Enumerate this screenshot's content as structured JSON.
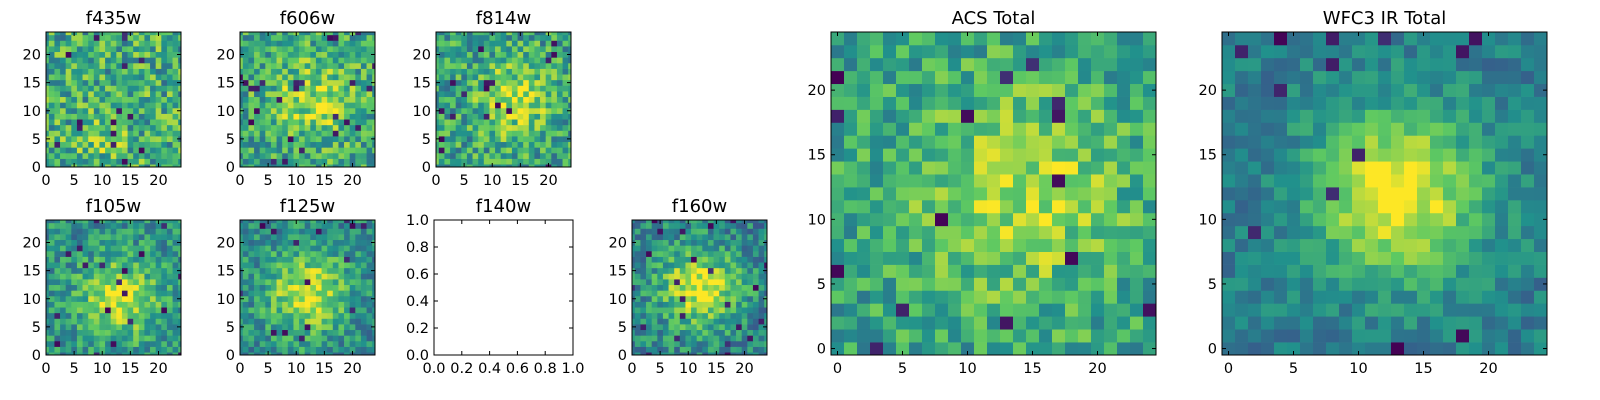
{
  "chart_data": [
    {
      "type": "heatmap",
      "title": "f435w",
      "xlim": [
        0,
        24
      ],
      "ylim": [
        0,
        24
      ],
      "xticks": [
        0,
        5,
        10,
        15,
        20
      ],
      "yticks": [
        0,
        5,
        10,
        15,
        20
      ],
      "xtick_labels": [
        "0",
        "5",
        "10",
        "15",
        "20"
      ],
      "ytick_labels": [
        "0",
        "5",
        "10",
        "15",
        "20"
      ],
      "grid_size": 25,
      "peak": [
        10,
        4
      ],
      "sigma": 4.0,
      "amplitude": 0.1,
      "noise": 0.55,
      "base": 0.62,
      "seed": 11,
      "empty": false
    },
    {
      "type": "heatmap",
      "title": "f606w",
      "xlim": [
        0,
        24
      ],
      "ylim": [
        0,
        24
      ],
      "xticks": [
        0,
        5,
        10,
        15,
        20
      ],
      "yticks": [
        0,
        5,
        10,
        15,
        20
      ],
      "xtick_labels": [
        "0",
        "5",
        "10",
        "15",
        "20"
      ],
      "ytick_labels": [
        "0",
        "5",
        "10",
        "15",
        "20"
      ],
      "grid_size": 25,
      "peak": [
        13,
        12
      ],
      "sigma": 5.0,
      "amplitude": 0.25,
      "noise": 0.5,
      "base": 0.6,
      "seed": 23,
      "empty": false
    },
    {
      "type": "heatmap",
      "title": "f814w",
      "xlim": [
        0,
        24
      ],
      "ylim": [
        0,
        24
      ],
      "xticks": [
        0,
        5,
        10,
        15,
        20
      ],
      "yticks": [
        0,
        5,
        10,
        15,
        20
      ],
      "xtick_labels": [
        "0",
        "5",
        "10",
        "15",
        "20"
      ],
      "ytick_labels": [
        "0",
        "5",
        "10",
        "15",
        "20"
      ],
      "grid_size": 25,
      "peak": [
        14,
        12
      ],
      "sigma": 4.5,
      "amplitude": 0.3,
      "noise": 0.5,
      "base": 0.58,
      "seed": 37,
      "empty": false
    },
    {
      "type": "heatmap",
      "title": "f105w",
      "xlim": [
        0,
        24
      ],
      "ylim": [
        0,
        24
      ],
      "xticks": [
        0,
        5,
        10,
        15,
        20
      ],
      "yticks": [
        0,
        5,
        10,
        15,
        20
      ],
      "xtick_labels": [
        "0",
        "5",
        "10",
        "15",
        "20"
      ],
      "ytick_labels": [
        "0",
        "5",
        "10",
        "15",
        "20"
      ],
      "grid_size": 25,
      "peak": [
        13,
        10
      ],
      "sigma": 5.0,
      "amplitude": 0.4,
      "noise": 0.4,
      "base": 0.5,
      "seed": 41,
      "empty": false
    },
    {
      "type": "heatmap",
      "title": "f125w",
      "xlim": [
        0,
        24
      ],
      "ylim": [
        0,
        24
      ],
      "xticks": [
        0,
        5,
        10,
        15,
        20
      ],
      "yticks": [
        0,
        5,
        10,
        15,
        20
      ],
      "xtick_labels": [
        "0",
        "5",
        "10",
        "15",
        "20"
      ],
      "ytick_labels": [
        "0",
        "5",
        "10",
        "15",
        "20"
      ],
      "grid_size": 25,
      "peak": [
        12,
        11
      ],
      "sigma": 5.0,
      "amplitude": 0.45,
      "noise": 0.4,
      "base": 0.48,
      "seed": 53,
      "empty": false
    },
    {
      "type": "heatmap",
      "title": "f140w",
      "xlim": [
        0,
        1
      ],
      "ylim": [
        0,
        1
      ],
      "xticks": [
        0,
        0.2,
        0.4,
        0.6,
        0.8,
        1.0
      ],
      "yticks": [
        0,
        0.2,
        0.4,
        0.6,
        0.8,
        1.0
      ],
      "xtick_labels": [
        "0.0",
        "0.2",
        "0.4",
        "0.6",
        "0.8",
        "1.0"
      ],
      "ytick_labels": [
        "0.0",
        "0.2",
        "0.4",
        "0.6",
        "0.8",
        "1.0"
      ],
      "empty": true
    },
    {
      "type": "heatmap",
      "title": "f160w",
      "xlim": [
        0,
        24
      ],
      "ylim": [
        0,
        24
      ],
      "xticks": [
        0,
        5,
        10,
        15,
        20
      ],
      "yticks": [
        0,
        5,
        10,
        15,
        20
      ],
      "xtick_labels": [
        "0",
        "5",
        "10",
        "15",
        "20"
      ],
      "ytick_labels": [
        "0",
        "5",
        "10",
        "15",
        "20"
      ],
      "grid_size": 25,
      "peak": [
        12,
        12
      ],
      "sigma": 5.0,
      "amplitude": 0.5,
      "noise": 0.4,
      "base": 0.45,
      "seed": 67,
      "empty": false
    },
    {
      "type": "heatmap",
      "title": "ACS Total",
      "xlim": [
        -0.5,
        24.5
      ],
      "ylim": [
        -0.5,
        24.5
      ],
      "xticks": [
        0,
        5,
        10,
        15,
        20
      ],
      "yticks": [
        0,
        5,
        10,
        15,
        20
      ],
      "xtick_labels": [
        "0",
        "5",
        "10",
        "15",
        "20"
      ],
      "ytick_labels": [
        "0",
        "5",
        "10",
        "15",
        "20"
      ],
      "grid_size": 25,
      "peak": [
        14,
        12
      ],
      "sigma": 5.5,
      "amplitude": 0.3,
      "noise": 0.4,
      "base": 0.58,
      "seed": 79,
      "empty": false
    },
    {
      "type": "heatmap",
      "title": "WFC3 IR Total",
      "xlim": [
        -0.5,
        24.5
      ],
      "ylim": [
        -0.5,
        24.5
      ],
      "xticks": [
        0,
        5,
        10,
        15,
        20
      ],
      "yticks": [
        0,
        5,
        10,
        15,
        20
      ],
      "xtick_labels": [
        "0",
        "5",
        "10",
        "15",
        "20"
      ],
      "ytick_labels": [
        "0",
        "5",
        "10",
        "15",
        "20"
      ],
      "grid_size": 25,
      "peak": [
        13,
        12
      ],
      "sigma": 4.5,
      "amplitude": 0.6,
      "noise": 0.25,
      "base": 0.42,
      "seed": 97,
      "empty": false
    }
  ],
  "colormap": [
    "#440154",
    "#3b528b",
    "#21918c",
    "#5ec962",
    "#fde725"
  ]
}
